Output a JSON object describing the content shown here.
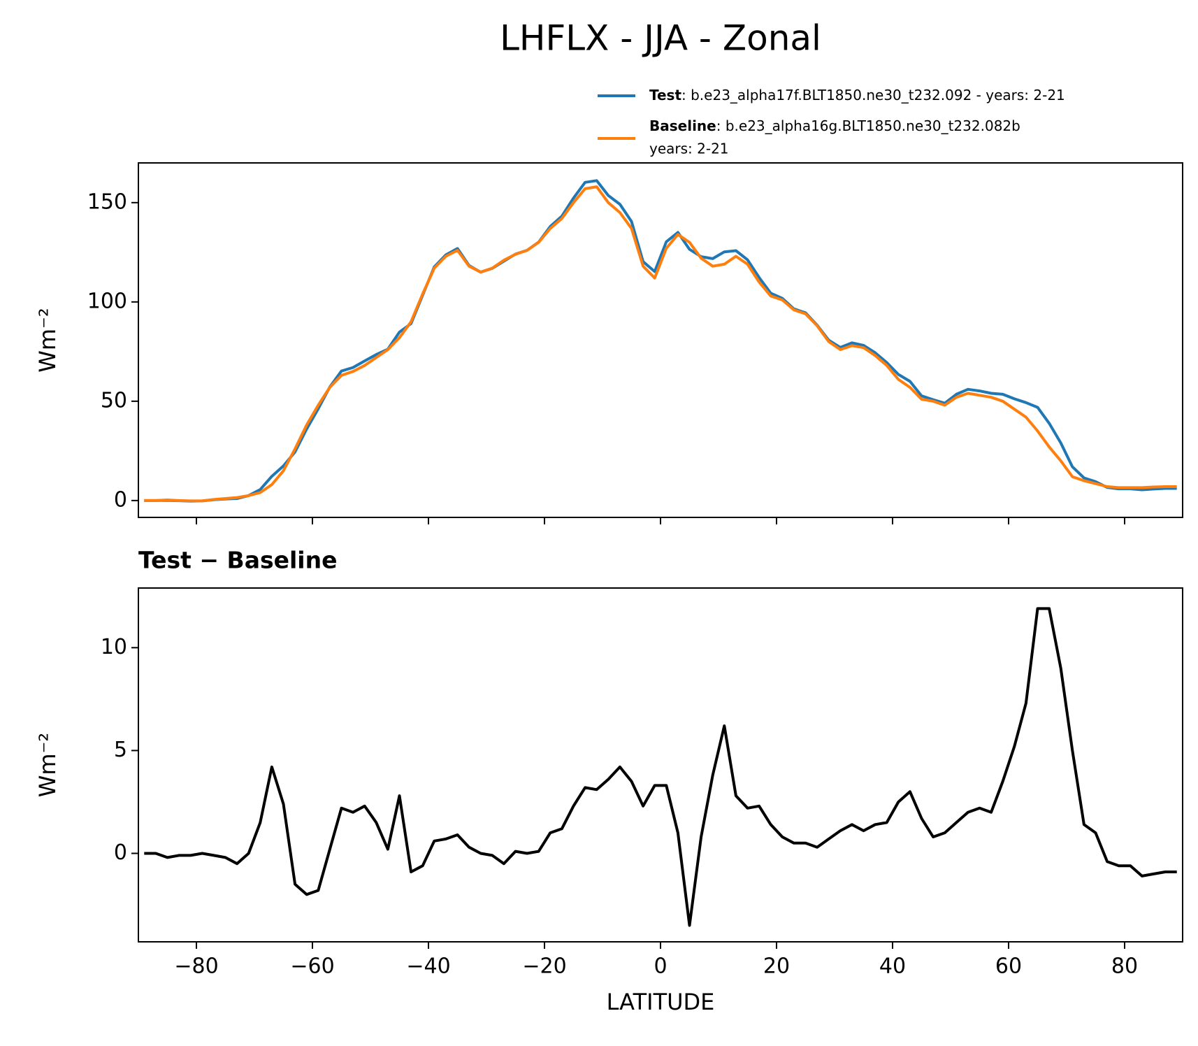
{
  "title": "LHFLX - JJA - Zonal",
  "chart_data": [
    {
      "type": "line",
      "ylabel": "Wm⁻²",
      "x": [
        -89,
        -87,
        -85,
        -83,
        -81,
        -79,
        -77,
        -75,
        -73,
        -71,
        -69,
        -67,
        -65,
        -63,
        -61,
        -59,
        -57,
        -55,
        -53,
        -51,
        -49,
        -47,
        -45,
        -43,
        -41,
        -39,
        -37,
        -35,
        -33,
        -31,
        -29,
        -27,
        -25,
        -23,
        -21,
        -19,
        -17,
        -15,
        -13,
        -11,
        -9,
        -7,
        -5,
        -3,
        -1,
        1,
        3,
        5,
        7,
        9,
        11,
        13,
        15,
        17,
        19,
        21,
        23,
        25,
        27,
        29,
        31,
        33,
        35,
        37,
        39,
        41,
        43,
        45,
        47,
        49,
        51,
        53,
        55,
        57,
        59,
        61,
        63,
        65,
        67,
        69,
        71,
        73,
        75,
        77,
        79,
        81,
        83,
        85,
        87,
        89
      ],
      "series": [
        {
          "name": "Test",
          "description": [
            ": b.e23_alpha17f.BLT1850.ne30_t232.092 - years: 2-21"
          ],
          "color": "#1f77b4",
          "values": [
            0,
            0,
            0.1,
            -0.1,
            -0.3,
            -0.2,
            0.4,
            0.8,
            1.0,
            2.5,
            5.5,
            12.2,
            17.4,
            24.5,
            36,
            46.2,
            57.2,
            65.2,
            67,
            70.3,
            73.5,
            76.2,
            84.8,
            89.1,
            103.4,
            117.6,
            123.7,
            126.9,
            118.3,
            115,
            116.9,
            120.5,
            124.1,
            126,
            130.1,
            138,
            143.2,
            152.3,
            160.2,
            161.1,
            153.6,
            149.2,
            140.5,
            120.3,
            115.3,
            130.3,
            135,
            126.5,
            122.8,
            121.8,
            125.2,
            125.8,
            121.2,
            112.3,
            104.4,
            101.8,
            96.5,
            94.5,
            88.3,
            80.7,
            77.1,
            79.4,
            78.1,
            74.4,
            69.5,
            63.5,
            60,
            52.7,
            50.8,
            49,
            53.5,
            56,
            55.2,
            54,
            53.5,
            51.2,
            49.3,
            46.9,
            38.9,
            29,
            17,
            11.4,
            9.5,
            6.6,
            5.9,
            5.9,
            5.4,
            5.8,
            6.1,
            6.1
          ]
        },
        {
          "name": "Baseline",
          "description": [
            ": b.e23_alpha16g.BLT1850.ne30_t232.082b",
            "years: 2-21"
          ],
          "color": "#ff7f0e",
          "values": [
            0,
            0,
            0.3,
            0,
            -0.2,
            -0.2,
            0.5,
            1,
            1.5,
            2.5,
            4,
            8,
            15,
            26,
            38,
            48,
            57,
            63,
            65,
            68,
            72,
            76,
            82,
            90,
            104,
            117,
            123,
            126,
            118,
            115,
            117,
            121,
            124,
            126,
            130,
            137,
            142,
            150,
            157,
            158,
            150,
            145,
            137,
            118,
            112,
            127,
            134,
            130,
            122,
            118,
            119,
            123,
            119,
            110,
            103,
            101,
            96,
            94,
            88,
            80,
            76,
            78,
            77,
            73,
            68,
            61,
            57,
            51,
            50,
            48,
            52,
            54,
            53,
            52,
            50,
            46,
            42,
            35,
            27,
            20,
            12,
            10,
            8.5,
            7,
            6.5,
            6.5,
            6.5,
            6.8,
            7,
            7
          ]
        }
      ],
      "xlim": [
        -90,
        90
      ],
      "xticks": [
        -80,
        -60,
        -40,
        -20,
        0,
        20,
        40,
        60,
        80
      ],
      "ylim": [
        -8.5,
        170
      ],
      "yticks": [
        0,
        50,
        100,
        150
      ]
    },
    {
      "type": "line",
      "title": "Test − Baseline",
      "ylabel": "Wm⁻²",
      "xlabel": "LATITUDE",
      "color": "#000000",
      "x": [
        -89,
        -87,
        -85,
        -83,
        -81,
        -79,
        -77,
        -75,
        -73,
        -71,
        -69,
        -67,
        -65,
        -63,
        -61,
        -59,
        -57,
        -55,
        -53,
        -51,
        -49,
        -47,
        -45,
        -43,
        -41,
        -39,
        -37,
        -35,
        -33,
        -31,
        -29,
        -27,
        -25,
        -23,
        -21,
        -19,
        -17,
        -15,
        -13,
        -11,
        -9,
        -7,
        -5,
        -3,
        -1,
        1,
        3,
        5,
        7,
        9,
        11,
        13,
        15,
        17,
        19,
        21,
        23,
        25,
        27,
        29,
        31,
        33,
        35,
        37,
        39,
        41,
        43,
        45,
        47,
        49,
        51,
        53,
        55,
        57,
        59,
        61,
        63,
        65,
        67,
        69,
        71,
        73,
        75,
        77,
        79,
        81,
        83,
        85,
        87,
        89
      ],
      "values": [
        0,
        0,
        -0.2,
        -0.1,
        -0.1,
        0,
        -0.1,
        -0.2,
        -0.5,
        0,
        1.5,
        4.2,
        2.4,
        -1.5,
        -2,
        -1.8,
        0.2,
        2.2,
        2.0,
        2.3,
        1.5,
        0.2,
        2.8,
        -0.9,
        -0.6,
        0.6,
        0.7,
        0.9,
        0.3,
        0,
        -0.1,
        -0.5,
        0.1,
        0,
        0.1,
        1,
        1.2,
        2.3,
        3.2,
        3.1,
        3.6,
        4.2,
        3.5,
        2.3,
        3.3,
        3.3,
        1.0,
        -3.5,
        0.8,
        3.8,
        6.2,
        2.8,
        2.2,
        2.3,
        1.4,
        0.8,
        0.5,
        0.5,
        0.3,
        0.7,
        1.1,
        1.4,
        1.1,
        1.4,
        1.5,
        2.5,
        3.0,
        1.7,
        0.8,
        1.0,
        1.5,
        2.0,
        2.2,
        2.0,
        3.5,
        5.2,
        7.3,
        11.9,
        11.9,
        9.0,
        5.0,
        1.4,
        1.0,
        -0.4,
        -0.6,
        -0.6,
        -1.1,
        -1.0,
        -0.9,
        -0.9
      ],
      "xlim": [
        -90,
        90
      ],
      "xticks": [
        {
          "value": -80,
          "label": "−80"
        },
        {
          "value": -60,
          "label": "−60"
        },
        {
          "value": -40,
          "label": "−40"
        },
        {
          "value": -20,
          "label": "−20"
        },
        0,
        20,
        40,
        60,
        80
      ],
      "ylim": [
        -4.3,
        12.9
      ],
      "yticks": [
        0,
        5,
        10
      ]
    }
  ]
}
